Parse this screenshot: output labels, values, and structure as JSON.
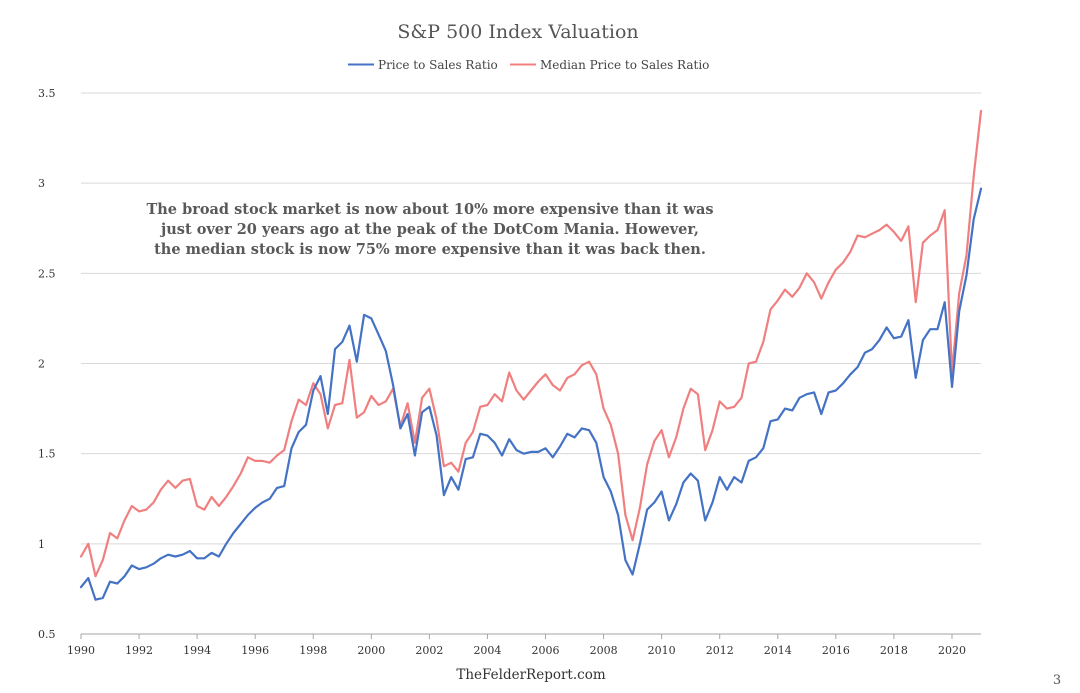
{
  "page": {
    "footer_text": "TheFelderReport.com",
    "page_number": "3"
  },
  "colors": {
    "price_to_sales": "#4472C4",
    "median_price_to_sales": "#F08080",
    "grid": "#d9d9d9",
    "axis": "#a6a6a6"
  },
  "chart_data": {
    "type": "line",
    "title": "S&P 500 Index Valuation",
    "xlabel": "",
    "ylabel": "",
    "ylim": [
      0.5,
      3.5
    ],
    "xlim": [
      1990,
      2021
    ],
    "y_ticks": [
      0.5,
      1,
      1.5,
      2,
      2.5,
      3,
      3.5
    ],
    "y_tick_labels": [
      "0.5",
      "1",
      "1.5",
      "2",
      "2.5",
      "3",
      "3.5"
    ],
    "x_ticks": [
      1990,
      1992,
      1994,
      1996,
      1998,
      2000,
      2002,
      2004,
      2006,
      2008,
      2010,
      2012,
      2014,
      2016,
      2018,
      2020
    ],
    "x_tick_labels": [
      "1990",
      "1992",
      "1994",
      "1996",
      "1998",
      "2000",
      "2002",
      "2004",
      "2006",
      "2008",
      "2010",
      "2012",
      "2014",
      "2016",
      "2018",
      "2020"
    ],
    "grid": "horizontal",
    "legend_position": "top-center",
    "annotation": [
      "The broad stock market is now about 10% more expensive than it was",
      "just over 20 years ago at the peak of the DotCom Mania. However,",
      "the median stock is now 75% more expensive than it was back then."
    ],
    "x": [
      1990,
      1990.25,
      1990.5,
      1990.75,
      1991,
      1991.25,
      1991.5,
      1991.75,
      1992,
      1992.25,
      1992.5,
      1992.75,
      1993,
      1993.25,
      1993.5,
      1993.75,
      1994,
      1994.25,
      1994.5,
      1994.75,
      1995,
      1995.25,
      1995.5,
      1995.75,
      1996,
      1996.25,
      1996.5,
      1996.75,
      1997,
      1997.25,
      1997.5,
      1997.75,
      1998,
      1998.25,
      1998.5,
      1998.75,
      1999,
      1999.25,
      1999.5,
      1999.75,
      2000,
      2000.25,
      2000.5,
      2000.75,
      2001,
      2001.25,
      2001.5,
      2001.75,
      2002,
      2002.25,
      2002.5,
      2002.75,
      2003,
      2003.25,
      2003.5,
      2003.75,
      2004,
      2004.25,
      2004.5,
      2004.75,
      2005,
      2005.25,
      2005.5,
      2005.75,
      2006,
      2006.25,
      2006.5,
      2006.75,
      2007,
      2007.25,
      2007.5,
      2007.75,
      2008,
      2008.25,
      2008.5,
      2008.75,
      2009,
      2009.25,
      2009.5,
      2009.75,
      2010,
      2010.25,
      2010.5,
      2010.75,
      2011,
      2011.25,
      2011.5,
      2011.75,
      2012,
      2012.25,
      2012.5,
      2012.75,
      2013,
      2013.25,
      2013.5,
      2013.75,
      2014,
      2014.25,
      2014.5,
      2014.75,
      2015,
      2015.25,
      2015.5,
      2015.75,
      2016,
      2016.25,
      2016.5,
      2016.75,
      2017,
      2017.25,
      2017.5,
      2017.75,
      2018,
      2018.25,
      2018.5,
      2018.75,
      2019,
      2019.25,
      2019.5,
      2019.75,
      2020,
      2020.25,
      2020.5,
      2020.75,
      2021
    ],
    "series": [
      {
        "name": "Price to Sales Ratio",
        "color": "#4472C4",
        "values": [
          0.76,
          0.81,
          0.69,
          0.7,
          0.79,
          0.78,
          0.82,
          0.88,
          0.86,
          0.87,
          0.89,
          0.92,
          0.94,
          0.93,
          0.94,
          0.96,
          0.92,
          0.92,
          0.95,
          0.93,
          1.0,
          1.06,
          1.11,
          1.16,
          1.2,
          1.23,
          1.25,
          1.31,
          1.32,
          1.53,
          1.62,
          1.66,
          1.85,
          1.93,
          1.72,
          2.08,
          2.12,
          2.21,
          2.01,
          2.27,
          2.25,
          2.16,
          2.07,
          1.88,
          1.64,
          1.72,
          1.49,
          1.73,
          1.76,
          1.6,
          1.27,
          1.37,
          1.3,
          1.47,
          1.48,
          1.61,
          1.6,
          1.56,
          1.49,
          1.58,
          1.52,
          1.5,
          1.51,
          1.51,
          1.53,
          1.48,
          1.54,
          1.61,
          1.59,
          1.64,
          1.63,
          1.56,
          1.37,
          1.29,
          1.16,
          0.91,
          0.83,
          1.0,
          1.19,
          1.23,
          1.29,
          1.13,
          1.22,
          1.34,
          1.39,
          1.35,
          1.13,
          1.23,
          1.37,
          1.3,
          1.37,
          1.34,
          1.46,
          1.48,
          1.53,
          1.68,
          1.69,
          1.75,
          1.74,
          1.81,
          1.83,
          1.84,
          1.72,
          1.84,
          1.85,
          1.89,
          1.94,
          1.98,
          2.06,
          2.08,
          2.13,
          2.2,
          2.14,
          2.15,
          2.24,
          1.92,
          2.13,
          2.19,
          2.19,
          2.34,
          1.87,
          2.29,
          2.49,
          2.8,
          2.97
        ]
      },
      {
        "name": "Median Price to Sales Ratio",
        "color": "#F08080",
        "values": [
          0.93,
          1.0,
          0.82,
          0.91,
          1.06,
          1.03,
          1.13,
          1.21,
          1.18,
          1.19,
          1.23,
          1.3,
          1.35,
          1.31,
          1.35,
          1.36,
          1.21,
          1.19,
          1.26,
          1.21,
          1.26,
          1.32,
          1.39,
          1.48,
          1.46,
          1.46,
          1.45,
          1.49,
          1.52,
          1.68,
          1.8,
          1.77,
          1.89,
          1.83,
          1.64,
          1.77,
          1.78,
          2.02,
          1.7,
          1.73,
          1.82,
          1.77,
          1.79,
          1.86,
          1.65,
          1.78,
          1.56,
          1.81,
          1.86,
          1.69,
          1.43,
          1.45,
          1.4,
          1.56,
          1.62,
          1.76,
          1.77,
          1.83,
          1.79,
          1.95,
          1.85,
          1.8,
          1.85,
          1.9,
          1.94,
          1.88,
          1.85,
          1.92,
          1.94,
          1.99,
          2.01,
          1.94,
          1.75,
          1.66,
          1.5,
          1.16,
          1.02,
          1.2,
          1.44,
          1.57,
          1.63,
          1.48,
          1.59,
          1.75,
          1.86,
          1.83,
          1.52,
          1.63,
          1.79,
          1.75,
          1.76,
          1.81,
          2.0,
          2.01,
          2.12,
          2.3,
          2.35,
          2.41,
          2.37,
          2.42,
          2.5,
          2.45,
          2.36,
          2.45,
          2.52,
          2.56,
          2.62,
          2.71,
          2.7,
          2.72,
          2.74,
          2.77,
          2.73,
          2.68,
          2.76,
          2.34,
          2.67,
          2.71,
          2.74,
          2.85,
          1.95,
          2.39,
          2.6,
          3.04,
          3.4
        ]
      }
    ]
  }
}
